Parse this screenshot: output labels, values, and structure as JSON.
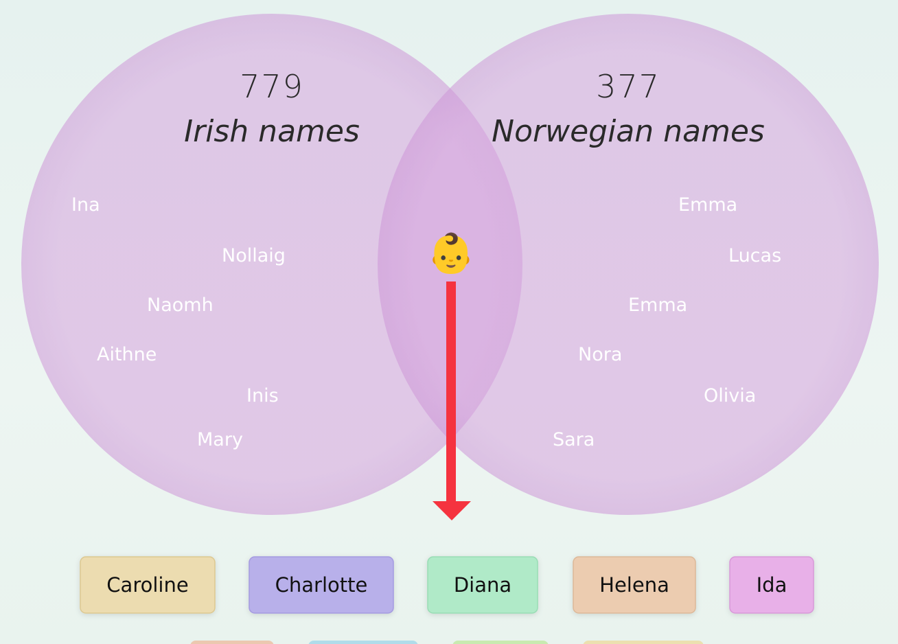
{
  "venn": {
    "left": {
      "count": "779",
      "label": "Irish names",
      "names": [
        "Ina",
        "Nollaig",
        "Naomh",
        "Aithne",
        "Inis",
        "Mary"
      ]
    },
    "right": {
      "count": "377",
      "label": "Norwegian names",
      "names": [
        "Emma",
        "Lucas",
        "Emma",
        "Nora",
        "Olivia",
        "Sara"
      ]
    },
    "center_icon": "👶"
  },
  "chips": [
    "Caroline",
    "Charlotte",
    "Diana",
    "Helena",
    "Ida"
  ]
}
